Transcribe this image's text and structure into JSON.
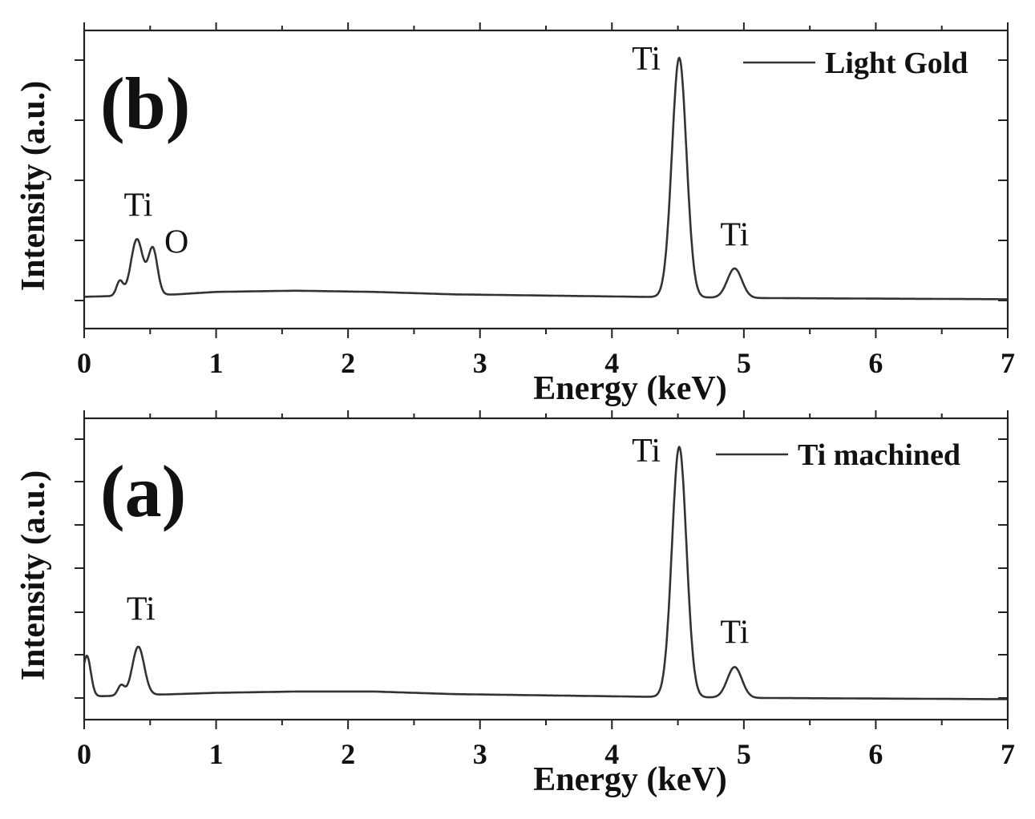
{
  "chart_data": [
    {
      "type": "line",
      "panel_label": "(b)",
      "xlabel": "Energy (keV)",
      "ylabel": "Intensity (a.u.)",
      "xlim": [
        0,
        7
      ],
      "ylim": [
        -0.12,
        1.1
      ],
      "x_ticks": [
        "0",
        "1",
        "2",
        "3",
        "4",
        "5",
        "6",
        "7"
      ],
      "legend": "Light Gold",
      "series": [
        {
          "name": "Light Gold",
          "baseline": 0.0,
          "background": [
            [
              0,
              0.01
            ],
            [
              0.7,
              0.02
            ],
            [
              1.0,
              0.03
            ],
            [
              1.6,
              0.035
            ],
            [
              2.2,
              0.03
            ],
            [
              2.8,
              0.02
            ],
            [
              3.5,
              0.015
            ],
            [
              4.2,
              0.01
            ],
            [
              5.1,
              0.005
            ],
            [
              7,
              0.0
            ]
          ],
          "peaks": [
            {
              "x": 0.27,
              "height": 0.06,
              "width": 0.025
            },
            {
              "x": 0.4,
              "height": 0.23,
              "width": 0.045
            },
            {
              "x": 0.52,
              "height": 0.19,
              "width": 0.035
            },
            {
              "x": 4.51,
              "height": 0.98,
              "width": 0.055
            },
            {
              "x": 4.93,
              "height": 0.12,
              "width": 0.055
            }
          ]
        }
      ],
      "annotations": [
        {
          "text": "Ti",
          "x": 0.41,
          "y": 0.34
        },
        {
          "text": "O",
          "x": 0.7,
          "y": 0.19
        },
        {
          "text": "Ti",
          "x": 4.26,
          "y": 0.94
        },
        {
          "text": "Ti",
          "x": 4.93,
          "y": 0.22
        }
      ]
    },
    {
      "type": "line",
      "panel_label": "(a)",
      "xlabel": "Energy (keV)",
      "ylabel": "Intensity (a.u.)",
      "xlim": [
        0,
        7
      ],
      "ylim": [
        -0.08,
        1.1
      ],
      "x_ticks": [
        "0",
        "1",
        "2",
        "3",
        "4",
        "5",
        "6",
        "7"
      ],
      "legend": "Ti machined",
      "series": [
        {
          "name": "Ti machined",
          "baseline": 0.0,
          "background": [
            [
              0,
              0.01
            ],
            [
              0.7,
              0.02
            ],
            [
              1.0,
              0.025
            ],
            [
              1.6,
              0.03
            ],
            [
              2.2,
              0.03
            ],
            [
              2.8,
              0.02
            ],
            [
              3.5,
              0.015
            ],
            [
              4.2,
              0.01
            ],
            [
              5.1,
              0.005
            ],
            [
              7,
              0.0
            ]
          ],
          "peaks": [
            {
              "x": 0.02,
              "height": 0.16,
              "width": 0.03
            },
            {
              "x": 0.28,
              "height": 0.04,
              "width": 0.025
            },
            {
              "x": 0.41,
              "height": 0.19,
              "width": 0.045
            },
            {
              "x": 4.51,
              "height": 0.98,
              "width": 0.055
            },
            {
              "x": 4.93,
              "height": 0.12,
              "width": 0.055
            }
          ]
        }
      ],
      "annotations": [
        {
          "text": "Ti",
          "x": 0.43,
          "y": 0.31
        },
        {
          "text": "Ti",
          "x": 4.26,
          "y": 0.93
        },
        {
          "text": "Ti",
          "x": 4.93,
          "y": 0.22
        }
      ]
    }
  ]
}
